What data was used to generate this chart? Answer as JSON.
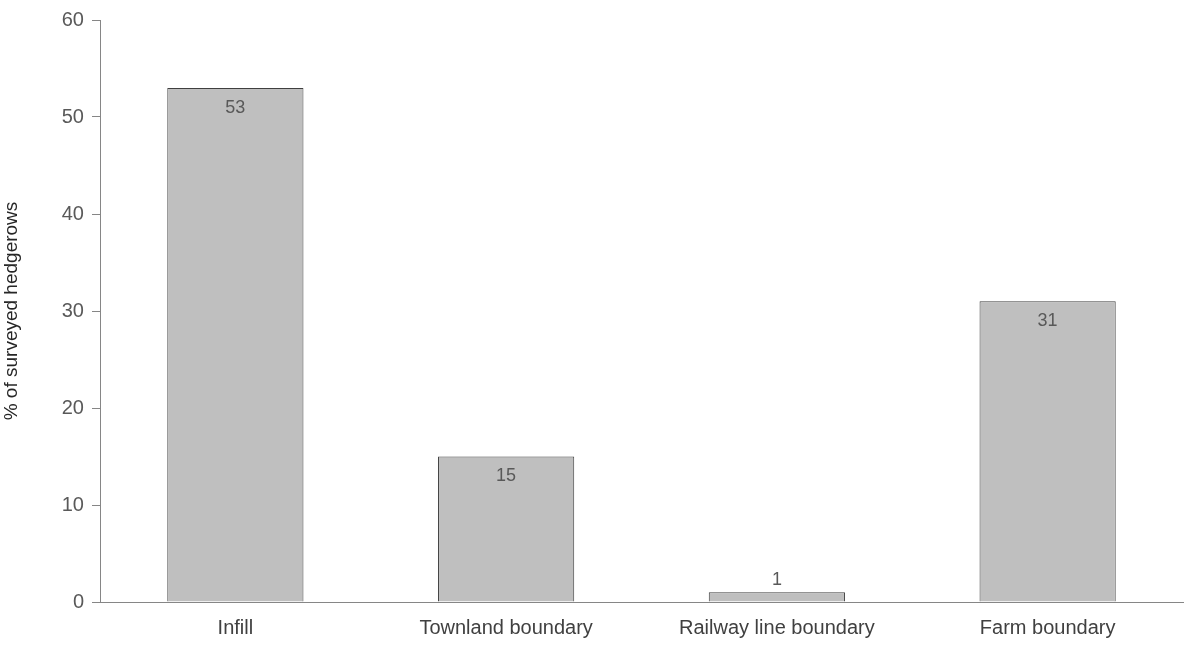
{
  "chart_data": {
    "type": "bar",
    "categories": [
      "Infill",
      "Townland boundary",
      "Railway line boundary",
      "Farm boundary"
    ],
    "values": [
      53,
      15,
      1,
      31
    ],
    "color": "#bfbfbf",
    "ylabel": "% of surveyed hedgerows",
    "ylim": [
      0,
      60
    ],
    "yticks": [
      0,
      10,
      20,
      30,
      40,
      50,
      60
    ],
    "data_labels": true
  }
}
